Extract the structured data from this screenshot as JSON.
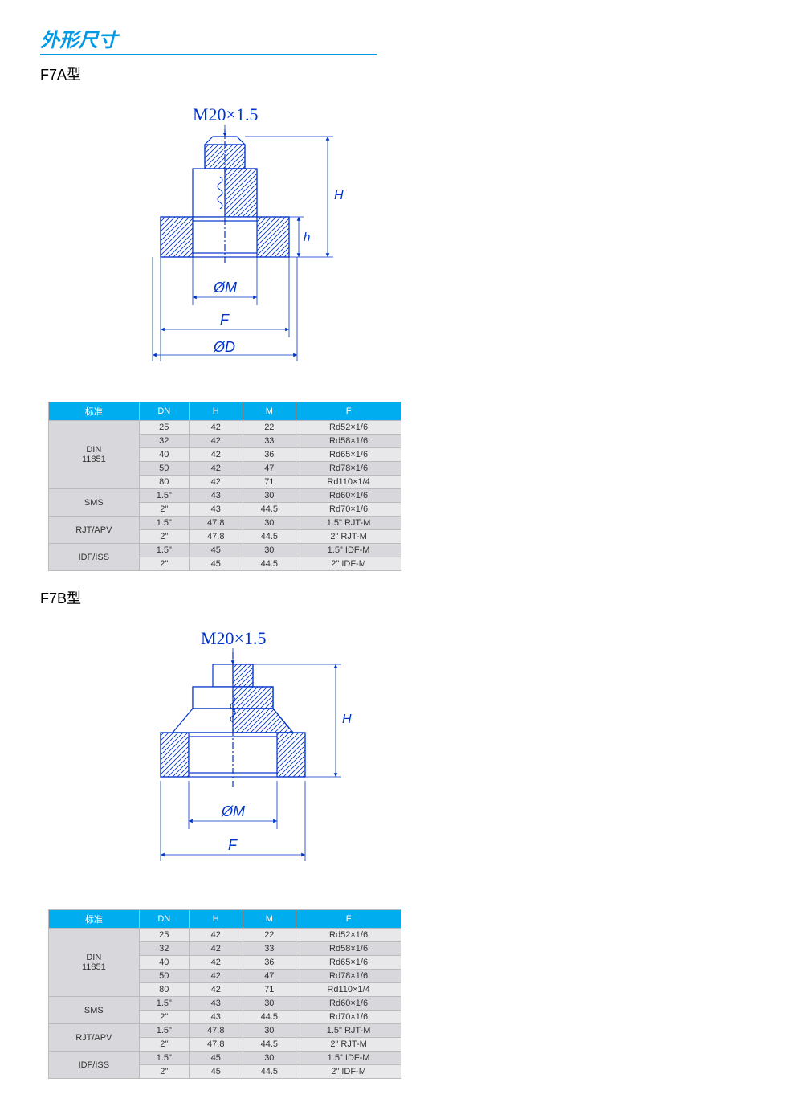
{
  "page": {
    "section_title": "外形尺寸",
    "sub_a": "F7A型",
    "sub_b": "F7B型"
  },
  "diagrams": {
    "thread_label": "M20×1.5",
    "h_label": "h",
    "H_label": "H",
    "phiM_label": "ØM",
    "F_label": "F",
    "phiD_label": "ØD",
    "stroke": "#0033cc",
    "hatch": "#0033cc"
  },
  "table": {
    "columns": [
      "标准",
      "DN",
      "H",
      "M",
      "F"
    ],
    "groups": [
      {
        "std": "DIN\n11851",
        "rows": [
          [
            "25",
            "42",
            "22",
            "Rd52×1/6"
          ],
          [
            "32",
            "42",
            "33",
            "Rd58×1/6"
          ],
          [
            "40",
            "42",
            "36",
            "Rd65×1/6"
          ],
          [
            "50",
            "42",
            "47",
            "Rd78×1/6"
          ],
          [
            "80",
            "42",
            "71",
            "Rd110×1/4"
          ]
        ]
      },
      {
        "std": "SMS",
        "rows": [
          [
            "1.5\"",
            "43",
            "30",
            "Rd60×1/6"
          ],
          [
            "2\"",
            "43",
            "44.5",
            "Rd70×1/6"
          ]
        ]
      },
      {
        "std": "RJT/APV",
        "rows": [
          [
            "1.5\"",
            "47.8",
            "30",
            "1.5\" RJT-M"
          ],
          [
            "2\"",
            "47.8",
            "44.5",
            "2\" RJT-M"
          ]
        ]
      },
      {
        "std": "IDF/ISS",
        "rows": [
          [
            "1.5\"",
            "45",
            "30",
            "1.5\" IDF-M"
          ],
          [
            "2\"",
            "45",
            "44.5",
            "2\" IDF-M"
          ]
        ]
      }
    ],
    "header_bg": "#00aeef",
    "header_fg": "#ffffff",
    "row_odd_bg": "#e8e8ea",
    "row_even_bg": "#d8d8dc",
    "border_color": "#bbbbbb",
    "font_size": 11
  }
}
